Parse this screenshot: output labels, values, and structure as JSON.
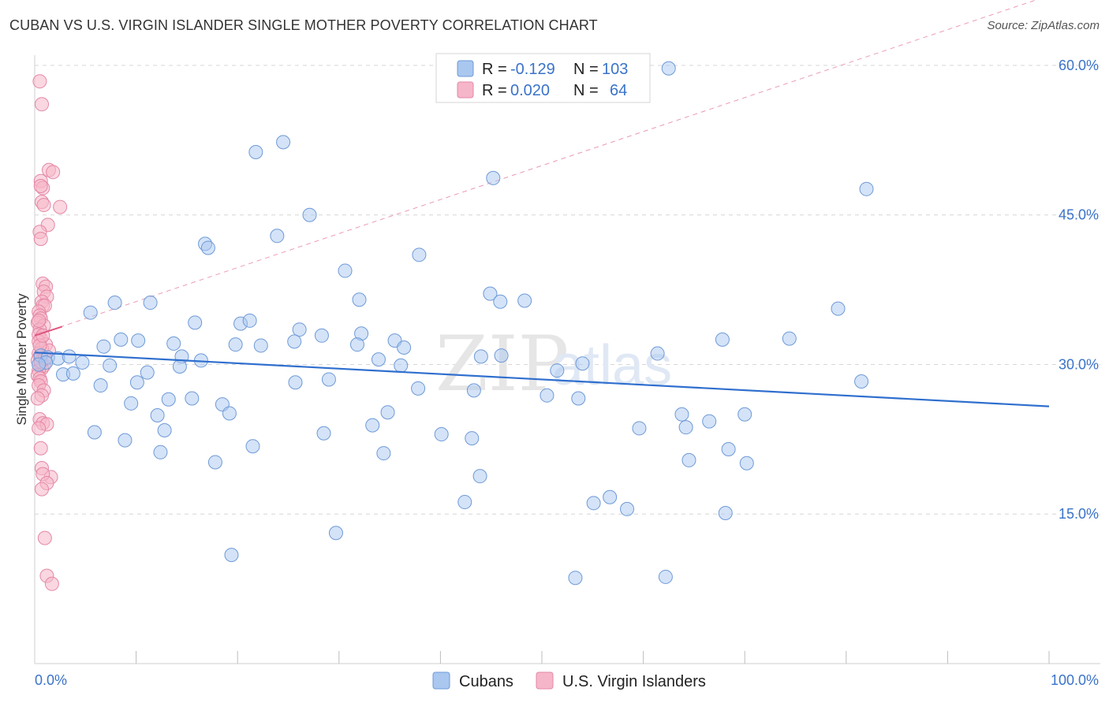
{
  "title": "CUBAN VS U.S. VIRGIN ISLANDER SINGLE MOTHER POVERTY CORRELATION CHART",
  "source": "Source: ZipAtlas.com",
  "watermark": {
    "zip": "ZIP",
    "atlas": "atlas"
  },
  "colors": {
    "cubans_fill": "#a9c7ef",
    "cubans_stroke": "#6f9ad8",
    "cubans_line": "#2f6fce",
    "vi_fill": "#f6b6c9",
    "vi_stroke": "#e487a6",
    "vi_line": "#e0557f",
    "grid": "#d6d6d6",
    "tick_text": "#3a73c9"
  },
  "legend": {
    "rows": [
      {
        "r_label": "R =",
        "r_value": "-0.129",
        "n_label": "N =",
        "n_value": "103"
      },
      {
        "r_label": "R =",
        "r_value": "0.020",
        "n_label": "N =",
        "n_value": "64"
      }
    ]
  },
  "bottom_legend": [
    "Cubans",
    "U.S. Virgin Islanders"
  ],
  "chart_data": {
    "type": "scatter",
    "title": "CUBAN VS U.S. VIRGIN ISLANDER SINGLE MOTHER POVERTY CORRELATION CHART",
    "xlabel": "",
    "ylabel": "Single Mother Poverty",
    "xlim": [
      0,
      100
    ],
    "ylim": [
      0,
      63
    ],
    "x_tick_labels": [
      "0.0%",
      "100.0%"
    ],
    "y_ticks": [
      15,
      30,
      45,
      60
    ],
    "y_tick_labels": [
      "15.0%",
      "30.0%",
      "45.0%",
      "60.0%"
    ],
    "grid": true,
    "series": [
      {
        "name": "Cubans",
        "r": -0.129,
        "n": 103,
        "trend": {
          "x": [
            0,
            100
          ],
          "y": [
            31.2,
            25.8
          ]
        },
        "points": [
          [
            62.5,
            59.7
          ],
          [
            21.8,
            51.3
          ],
          [
            24.5,
            52.3
          ],
          [
            45.2,
            48.7
          ],
          [
            82.0,
            47.6
          ],
          [
            27.1,
            45.0
          ],
          [
            23.9,
            42.9
          ],
          [
            16.8,
            42.1
          ],
          [
            17.1,
            41.7
          ],
          [
            37.9,
            41.0
          ],
          [
            30.6,
            39.4
          ],
          [
            32.0,
            36.5
          ],
          [
            44.9,
            37.1
          ],
          [
            45.9,
            36.3
          ],
          [
            48.3,
            36.4
          ],
          [
            79.2,
            35.6
          ],
          [
            7.9,
            36.2
          ],
          [
            11.4,
            36.2
          ],
          [
            5.5,
            35.2
          ],
          [
            15.8,
            34.2
          ],
          [
            20.3,
            34.1
          ],
          [
            21.2,
            34.4
          ],
          [
            26.1,
            33.5
          ],
          [
            32.2,
            33.1
          ],
          [
            28.3,
            32.9
          ],
          [
            8.5,
            32.5
          ],
          [
            10.2,
            32.4
          ],
          [
            25.6,
            32.3
          ],
          [
            35.5,
            32.4
          ],
          [
            74.4,
            32.6
          ],
          [
            67.8,
            32.5
          ],
          [
            6.8,
            31.8
          ],
          [
            13.7,
            32.1
          ],
          [
            19.8,
            32.0
          ],
          [
            22.3,
            31.9
          ],
          [
            36.4,
            31.7
          ],
          [
            61.4,
            31.1
          ],
          [
            0.6,
            30.9
          ],
          [
            1.3,
            30.7
          ],
          [
            2.3,
            30.6
          ],
          [
            3.4,
            30.8
          ],
          [
            4.7,
            30.2
          ],
          [
            1.1,
            30.2
          ],
          [
            0.4,
            30.0
          ],
          [
            14.5,
            30.8
          ],
          [
            16.4,
            30.4
          ],
          [
            44.0,
            30.8
          ],
          [
            46.0,
            30.9
          ],
          [
            33.9,
            30.5
          ],
          [
            54.0,
            30.1
          ],
          [
            7.4,
            29.9
          ],
          [
            11.1,
            29.2
          ],
          [
            14.3,
            29.8
          ],
          [
            36.1,
            29.9
          ],
          [
            51.5,
            29.4
          ],
          [
            2.8,
            29.0
          ],
          [
            3.8,
            29.1
          ],
          [
            10.1,
            28.2
          ],
          [
            25.7,
            28.2
          ],
          [
            29.0,
            28.5
          ],
          [
            6.5,
            27.9
          ],
          [
            37.8,
            27.6
          ],
          [
            43.3,
            27.4
          ],
          [
            81.5,
            28.3
          ],
          [
            50.5,
            26.9
          ],
          [
            13.2,
            26.5
          ],
          [
            15.5,
            26.6
          ],
          [
            18.5,
            26.0
          ],
          [
            9.5,
            26.1
          ],
          [
            53.6,
            26.6
          ],
          [
            12.1,
            24.9
          ],
          [
            19.2,
            25.1
          ],
          [
            34.8,
            25.2
          ],
          [
            63.8,
            25.0
          ],
          [
            70.0,
            25.0
          ],
          [
            66.5,
            24.3
          ],
          [
            33.3,
            23.9
          ],
          [
            59.6,
            23.6
          ],
          [
            64.2,
            23.7
          ],
          [
            12.8,
            23.4
          ],
          [
            5.9,
            23.2
          ],
          [
            28.5,
            23.1
          ],
          [
            40.1,
            23.0
          ],
          [
            43.1,
            22.6
          ],
          [
            8.9,
            22.4
          ],
          [
            21.5,
            21.8
          ],
          [
            12.4,
            21.2
          ],
          [
            34.4,
            21.1
          ],
          [
            68.4,
            21.5
          ],
          [
            17.8,
            20.2
          ],
          [
            64.5,
            20.4
          ],
          [
            70.2,
            20.1
          ],
          [
            43.9,
            18.8
          ],
          [
            42.4,
            16.2
          ],
          [
            55.1,
            16.1
          ],
          [
            56.7,
            16.7
          ],
          [
            58.4,
            15.5
          ],
          [
            68.1,
            15.1
          ],
          [
            29.7,
            13.1
          ],
          [
            19.4,
            10.9
          ],
          [
            53.3,
            8.6
          ],
          [
            62.2,
            8.7
          ],
          [
            31.8,
            32.0
          ]
        ]
      },
      {
        "name": "U.S. Virgin Islanders",
        "r": 0.02,
        "n": 64,
        "trend": {
          "x": [
            0,
            2.7
          ],
          "y": [
            32.9,
            33.8
          ]
        },
        "trend_extended": {
          "x": [
            0,
            100
          ],
          "y": [
            32.9,
            67.0
          ]
        },
        "points": [
          [
            0.5,
            58.4
          ],
          [
            0.7,
            56.1
          ],
          [
            1.4,
            49.5
          ],
          [
            1.8,
            49.3
          ],
          [
            0.6,
            48.4
          ],
          [
            0.8,
            47.7
          ],
          [
            0.6,
            47.9
          ],
          [
            0.7,
            46.3
          ],
          [
            0.9,
            46.0
          ],
          [
            2.5,
            45.8
          ],
          [
            1.3,
            44.0
          ],
          [
            0.5,
            43.3
          ],
          [
            0.6,
            42.6
          ],
          [
            0.8,
            38.1
          ],
          [
            1.1,
            37.8
          ],
          [
            0.9,
            37.3
          ],
          [
            1.2,
            36.8
          ],
          [
            0.7,
            36.3
          ],
          [
            0.8,
            35.9
          ],
          [
            1.0,
            35.9
          ],
          [
            0.4,
            35.3
          ],
          [
            0.5,
            34.9
          ],
          [
            0.6,
            34.6
          ],
          [
            0.3,
            34.2
          ],
          [
            0.9,
            33.9
          ],
          [
            0.5,
            33.5
          ],
          [
            0.4,
            33.0
          ],
          [
            0.6,
            32.6
          ],
          [
            0.4,
            32.3
          ],
          [
            1.1,
            32.0
          ],
          [
            0.7,
            31.6
          ],
          [
            1.4,
            31.4
          ],
          [
            0.4,
            31.1
          ],
          [
            0.5,
            30.8
          ],
          [
            0.3,
            30.4
          ],
          [
            0.6,
            30.1
          ],
          [
            0.9,
            29.9
          ],
          [
            0.7,
            29.6
          ],
          [
            0.4,
            29.4
          ],
          [
            0.3,
            28.9
          ],
          [
            0.5,
            28.6
          ],
          [
            0.6,
            28.3
          ],
          [
            0.4,
            27.9
          ],
          [
            0.9,
            27.4
          ],
          [
            0.7,
            26.9
          ],
          [
            0.3,
            26.6
          ],
          [
            0.5,
            24.5
          ],
          [
            0.8,
            24.1
          ],
          [
            1.2,
            24.0
          ],
          [
            0.4,
            23.6
          ],
          [
            0.6,
            21.6
          ],
          [
            0.7,
            19.6
          ],
          [
            1.6,
            18.7
          ],
          [
            0.8,
            19.0
          ],
          [
            1.2,
            18.1
          ],
          [
            0.7,
            17.5
          ],
          [
            1.0,
            12.6
          ],
          [
            1.2,
            8.8
          ],
          [
            1.7,
            8.0
          ],
          [
            0.5,
            31.9
          ],
          [
            0.6,
            30.3
          ],
          [
            0.8,
            32.9
          ],
          [
            1.0,
            30.6
          ],
          [
            0.4,
            34.4
          ]
        ]
      }
    ]
  }
}
